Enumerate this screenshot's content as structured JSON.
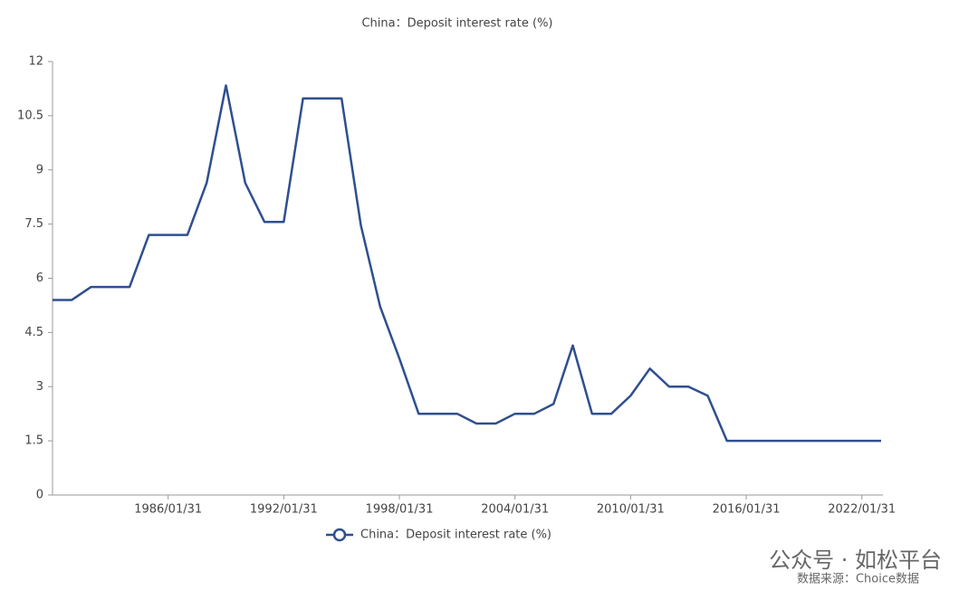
{
  "chart_data": {
    "type": "line",
    "title": "China：Deposit interest rate (%)",
    "x": [
      "1980/01/31",
      "1981/01/31",
      "1982/01/31",
      "1983/01/31",
      "1984/01/31",
      "1985/01/31",
      "1986/01/31",
      "1987/01/31",
      "1988/01/31",
      "1989/01/31",
      "1990/01/31",
      "1991/01/31",
      "1992/01/31",
      "1993/01/31",
      "1994/01/31",
      "1995/01/31",
      "1996/01/31",
      "1997/01/31",
      "1998/01/31",
      "1999/01/31",
      "2000/01/31",
      "2001/01/31",
      "2002/01/31",
      "2003/01/31",
      "2004/01/31",
      "2005/01/31",
      "2006/01/31",
      "2007/01/31",
      "2008/01/31",
      "2009/01/31",
      "2010/01/31",
      "2011/01/31",
      "2012/01/31",
      "2013/01/31",
      "2014/01/31",
      "2015/01/31",
      "2016/01/31",
      "2017/01/31",
      "2018/01/31",
      "2019/01/31",
      "2020/01/31",
      "2021/01/31",
      "2022/01/31",
      "2023/01/31"
    ],
    "series": [
      {
        "name": "China：Deposit interest rate (%)",
        "color": "#2f4f8f",
        "values": [
          5.4,
          5.4,
          5.76,
          5.76,
          5.76,
          7.2,
          7.2,
          7.2,
          8.64,
          11.34,
          8.64,
          7.56,
          7.56,
          10.98,
          10.98,
          10.98,
          7.47,
          5.22,
          3.78,
          2.25,
          2.25,
          2.25,
          1.98,
          1.98,
          2.25,
          2.25,
          2.52,
          4.14,
          2.25,
          2.25,
          2.75,
          3.5,
          3.0,
          3.0,
          2.75,
          1.5,
          1.5,
          1.5,
          1.5,
          1.5,
          1.5,
          1.5,
          1.5,
          1.5
        ]
      }
    ],
    "xticks": [
      "1986/01/31",
      "1992/01/31",
      "1998/01/31",
      "2004/01/31",
      "2010/01/31",
      "2016/01/31",
      "2022/01/31"
    ],
    "ylim": [
      0,
      12
    ],
    "yticks": [
      0,
      1.5,
      3,
      4.5,
      6,
      7.5,
      9,
      10.5,
      12
    ],
    "grid": false,
    "source": "数据来源：Choice数据",
    "watermark": "公众号 · 如松平台"
  }
}
